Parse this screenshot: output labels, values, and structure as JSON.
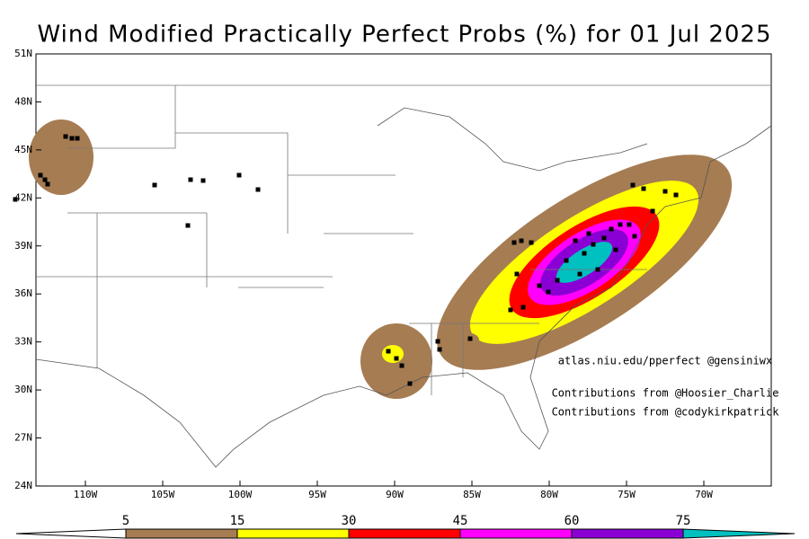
{
  "title": "Wind Modified Practically Perfect Probs (%) for 01 Jul 2025",
  "map": {
    "lat_labels": [
      "51N",
      "48N",
      "45N",
      "42N",
      "39N",
      "36N",
      "33N",
      "30N",
      "27N",
      "24N"
    ],
    "lon_labels": [
      "110W",
      "105W",
      "100W",
      "95W",
      "90W",
      "85W",
      "80W",
      "75W",
      "70W"
    ]
  },
  "credits": [
    "atlas.niu.edu/pperfect @gensiniwx",
    "Contributions from @Hoosier_Charlie",
    "Contributions from @codykirkpatrick"
  ],
  "colorbar": {
    "levels": [
      5,
      15,
      30,
      45,
      60,
      75
    ],
    "colors": [
      "#a67c52",
      "#ffff00",
      "#ff0000",
      "#ff00ff",
      "#8a00d4",
      "#00c0c0"
    ]
  }
}
